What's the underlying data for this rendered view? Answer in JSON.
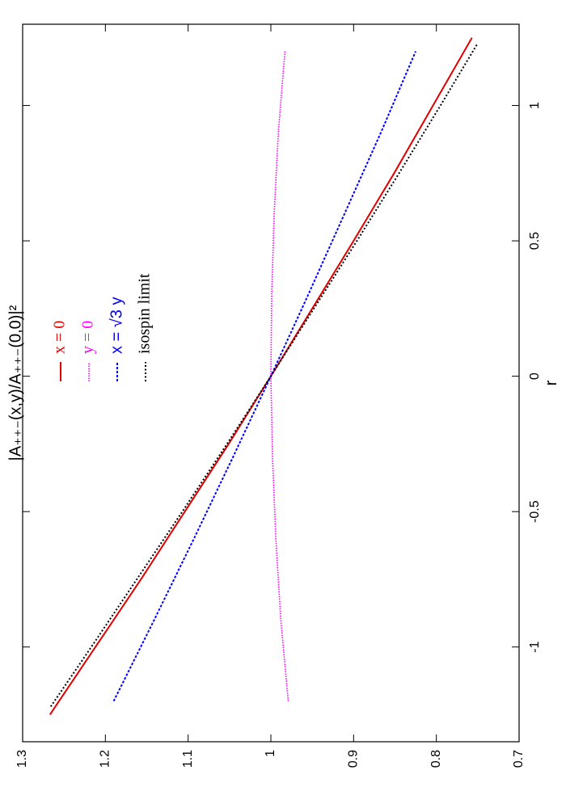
{
  "chart_data": {
    "type": "line",
    "xlabel": "r",
    "ylabel": "|A₊₊₋(x,y)/A₊₊₋(0,0)|²",
    "xlim": [
      -1.35,
      1.3
    ],
    "xticks": [
      -1,
      -0.5,
      0,
      0.5,
      1
    ],
    "ylim": [
      0.7,
      1.3
    ],
    "yticks": [
      0.7,
      0.8,
      0.9,
      1,
      1.1,
      1.2,
      1.3
    ],
    "series": [
      {
        "name": "x = 0",
        "color": "#e00000",
        "x": [
          -1.25,
          -1,
          -0.75,
          -0.5,
          -0.25,
          0,
          0.25,
          0.5,
          0.75,
          1,
          1.25
        ],
        "values": [
          1.267,
          1.212,
          1.157,
          1.104,
          1.051,
          1,
          0.95,
          0.9,
          0.851,
          0.804,
          0.757
        ]
      },
      {
        "name": "y = 0",
        "color": "#ff00ff",
        "x": [
          -1.2,
          -0.9,
          -0.6,
          -0.3,
          0,
          0.3,
          0.6,
          0.9,
          1.2
        ],
        "values": [
          0.979,
          0.988,
          0.994,
          0.998,
          1,
          0.999,
          0.996,
          0.991,
          0.983
        ]
      },
      {
        "name": "x = √3 y",
        "color": "#0000ff",
        "x": [
          -1.2,
          -0.9,
          -0.6,
          -0.3,
          0,
          0.3,
          0.6,
          0.9,
          1.2
        ],
        "values": [
          1.19,
          1.141,
          1.093,
          1.046,
          1,
          0.955,
          0.911,
          0.867,
          0.825
        ]
      },
      {
        "name": "isospin limit",
        "color": "#000000",
        "x": [
          -1.22,
          -1,
          -0.75,
          -0.5,
          -0.25,
          0,
          0.25,
          0.5,
          0.75,
          1,
          1.23
        ],
        "values": [
          1.266,
          1.217,
          1.162,
          1.107,
          1.053,
          1,
          0.948,
          0.896,
          0.845,
          0.795,
          0.75
        ]
      }
    ]
  }
}
